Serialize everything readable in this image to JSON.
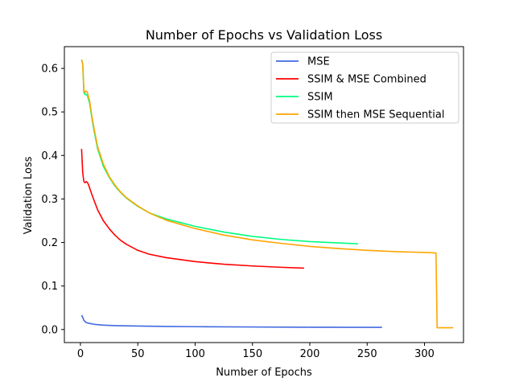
{
  "chart_data": {
    "type": "line",
    "title": "Number of Epochs vs Validation Loss",
    "xlabel": "Number of Epochs",
    "ylabel": "Validation Loss",
    "xlim": [
      -14,
      334
    ],
    "ylim": [
      -0.03,
      0.65
    ],
    "xticks": [
      0,
      50,
      100,
      150,
      200,
      250,
      300
    ],
    "yticks": [
      0.0,
      0.1,
      0.2,
      0.3,
      0.4,
      0.5,
      0.6
    ],
    "ytick_labels": [
      "0.0",
      "0.1",
      "0.2",
      "0.3",
      "0.4",
      "0.5",
      "0.6"
    ],
    "legend_position": "upper-right",
    "grid": false,
    "series": [
      {
        "name": "MSE",
        "color": "#4169e1",
        "x": [
          1,
          2,
          3,
          5,
          8,
          12,
          20,
          30,
          50,
          75,
          100,
          150,
          200,
          263
        ],
        "y": [
          0.033,
          0.028,
          0.021,
          0.016,
          0.014,
          0.012,
          0.01,
          0.009,
          0.008,
          0.007,
          0.0065,
          0.0058,
          0.0053,
          0.005
        ]
      },
      {
        "name": "SSIM & MSE Combined",
        "color": "#ff0000",
        "x": [
          1,
          2,
          3,
          4,
          5,
          6,
          7,
          10,
          15,
          20,
          25,
          30,
          35,
          40,
          50,
          60,
          75,
          100,
          125,
          150,
          175,
          195
        ],
        "y": [
          0.415,
          0.36,
          0.34,
          0.337,
          0.34,
          0.338,
          0.333,
          0.31,
          0.275,
          0.25,
          0.232,
          0.217,
          0.205,
          0.196,
          0.182,
          0.173,
          0.165,
          0.156,
          0.15,
          0.146,
          0.143,
          0.141
        ]
      },
      {
        "name": "SSIM",
        "color": "#00ff7f",
        "x": [
          1,
          2,
          3,
          4,
          5,
          6,
          8,
          10,
          12,
          15,
          20,
          25,
          30,
          35,
          40,
          50,
          60,
          75,
          100,
          125,
          150,
          175,
          200,
          225,
          242
        ],
        "y": [
          0.62,
          0.61,
          0.545,
          0.54,
          0.54,
          0.538,
          0.52,
          0.485,
          0.455,
          0.415,
          0.375,
          0.35,
          0.33,
          0.315,
          0.302,
          0.283,
          0.268,
          0.254,
          0.237,
          0.224,
          0.214,
          0.207,
          0.202,
          0.199,
          0.197
        ]
      },
      {
        "name": "SSIM then MSE Sequential",
        "color": "#ffa500",
        "x": [
          1,
          2,
          3,
          4,
          5,
          6,
          8,
          10,
          12,
          15,
          20,
          25,
          30,
          35,
          40,
          50,
          60,
          75,
          100,
          125,
          150,
          175,
          200,
          225,
          250,
          275,
          300,
          310,
          311,
          313,
          325
        ],
        "y": [
          0.62,
          0.61,
          0.55,
          0.545,
          0.548,
          0.545,
          0.525,
          0.49,
          0.46,
          0.42,
          0.38,
          0.352,
          0.332,
          0.316,
          0.303,
          0.284,
          0.268,
          0.251,
          0.232,
          0.217,
          0.206,
          0.198,
          0.191,
          0.186,
          0.182,
          0.179,
          0.177,
          0.176,
          0.004,
          0.004,
          0.004
        ]
      }
    ]
  }
}
